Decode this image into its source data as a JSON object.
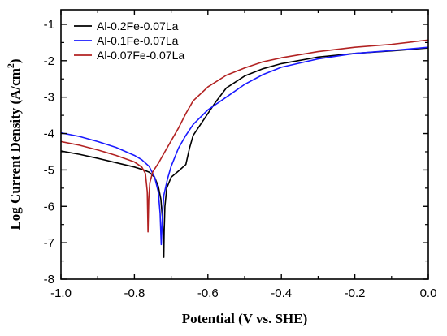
{
  "chart_data": {
    "type": "line",
    "xlabel": "Potential (V vs. SHE)",
    "ylabel": "Log Current Density (A/cm²)",
    "ylabel_main": "Log Current Density (A/cm",
    "ylabel_sup": "2",
    "ylabel_tail": ")",
    "xlim": [
      -1.0,
      0.0
    ],
    "ylim": [
      -8,
      -0.6
    ],
    "xticks": [
      -1.0,
      -0.8,
      -0.6,
      -0.4,
      -0.2,
      0.0
    ],
    "xtick_labels": [
      "-1.0",
      "-0.8",
      "-0.6",
      "-0.4",
      "-0.2",
      "0.0"
    ],
    "yticks": [
      -8,
      -7,
      -6,
      -5,
      -4,
      -3,
      -2,
      -1
    ],
    "ytick_labels": [
      "-8",
      "-7",
      "-6",
      "-5",
      "-4",
      "-3",
      "-2",
      "-1"
    ],
    "grid": false,
    "legend_position": "top-left",
    "series": [
      {
        "name": "Al-0.2Fe-0.07La",
        "color": "#000000",
        "points": [
          [
            -1.0,
            -4.48
          ],
          [
            -0.95,
            -4.57
          ],
          [
            -0.9,
            -4.68
          ],
          [
            -0.85,
            -4.8
          ],
          [
            -0.8,
            -4.92
          ],
          [
            -0.775,
            -5.0
          ],
          [
            -0.76,
            -5.06
          ],
          [
            -0.745,
            -5.2
          ],
          [
            -0.735,
            -5.45
          ],
          [
            -0.728,
            -5.8
          ],
          [
            -0.724,
            -6.3
          ],
          [
            -0.721,
            -6.9
          ],
          [
            -0.72,
            -7.4
          ],
          [
            -0.719,
            -6.7
          ],
          [
            -0.717,
            -6.0
          ],
          [
            -0.712,
            -5.5
          ],
          [
            -0.7,
            -5.2
          ],
          [
            -0.68,
            -5.03
          ],
          [
            -0.66,
            -4.85
          ],
          [
            -0.65,
            -4.4
          ],
          [
            -0.64,
            -4.05
          ],
          [
            -0.62,
            -3.75
          ],
          [
            -0.6,
            -3.45
          ],
          [
            -0.58,
            -3.15
          ],
          [
            -0.55,
            -2.75
          ],
          [
            -0.5,
            -2.42
          ],
          [
            -0.45,
            -2.22
          ],
          [
            -0.4,
            -2.08
          ],
          [
            -0.3,
            -1.9
          ],
          [
            -0.2,
            -1.8
          ],
          [
            -0.1,
            -1.73
          ],
          [
            0.0,
            -1.65
          ]
        ]
      },
      {
        "name": "Al-0.1Fe-0.07La",
        "color": "#1a1aff",
        "points": [
          [
            -1.0,
            -3.98
          ],
          [
            -0.95,
            -4.08
          ],
          [
            -0.9,
            -4.22
          ],
          [
            -0.85,
            -4.38
          ],
          [
            -0.8,
            -4.6
          ],
          [
            -0.78,
            -4.72
          ],
          [
            -0.76,
            -4.9
          ],
          [
            -0.745,
            -5.2
          ],
          [
            -0.735,
            -5.6
          ],
          [
            -0.73,
            -6.2
          ],
          [
            -0.727,
            -7.05
          ],
          [
            -0.724,
            -6.3
          ],
          [
            -0.72,
            -5.7
          ],
          [
            -0.71,
            -5.25
          ],
          [
            -0.7,
            -4.9
          ],
          [
            -0.68,
            -4.4
          ],
          [
            -0.66,
            -4.05
          ],
          [
            -0.64,
            -3.75
          ],
          [
            -0.6,
            -3.35
          ],
          [
            -0.55,
            -3.0
          ],
          [
            -0.5,
            -2.65
          ],
          [
            -0.45,
            -2.38
          ],
          [
            -0.4,
            -2.18
          ],
          [
            -0.3,
            -1.95
          ],
          [
            -0.2,
            -1.8
          ],
          [
            -0.1,
            -1.72
          ],
          [
            0.0,
            -1.63
          ]
        ]
      },
      {
        "name": "Al-0.07Fe-0.07La",
        "color": "#b22222",
        "points": [
          [
            -1.0,
            -4.22
          ],
          [
            -0.95,
            -4.32
          ],
          [
            -0.9,
            -4.45
          ],
          [
            -0.85,
            -4.6
          ],
          [
            -0.8,
            -4.78
          ],
          [
            -0.78,
            -4.92
          ],
          [
            -0.77,
            -5.1
          ],
          [
            -0.765,
            -5.6
          ],
          [
            -0.763,
            -6.7
          ],
          [
            -0.761,
            -5.8
          ],
          [
            -0.758,
            -5.35
          ],
          [
            -0.75,
            -5.05
          ],
          [
            -0.735,
            -4.82
          ],
          [
            -0.72,
            -4.55
          ],
          [
            -0.7,
            -4.2
          ],
          [
            -0.68,
            -3.85
          ],
          [
            -0.66,
            -3.45
          ],
          [
            -0.64,
            -3.1
          ],
          [
            -0.6,
            -2.72
          ],
          [
            -0.55,
            -2.4
          ],
          [
            -0.5,
            -2.2
          ],
          [
            -0.45,
            -2.03
          ],
          [
            -0.4,
            -1.92
          ],
          [
            -0.3,
            -1.75
          ],
          [
            -0.2,
            -1.63
          ],
          [
            -0.1,
            -1.55
          ],
          [
            0.0,
            -1.43
          ]
        ]
      }
    ]
  }
}
